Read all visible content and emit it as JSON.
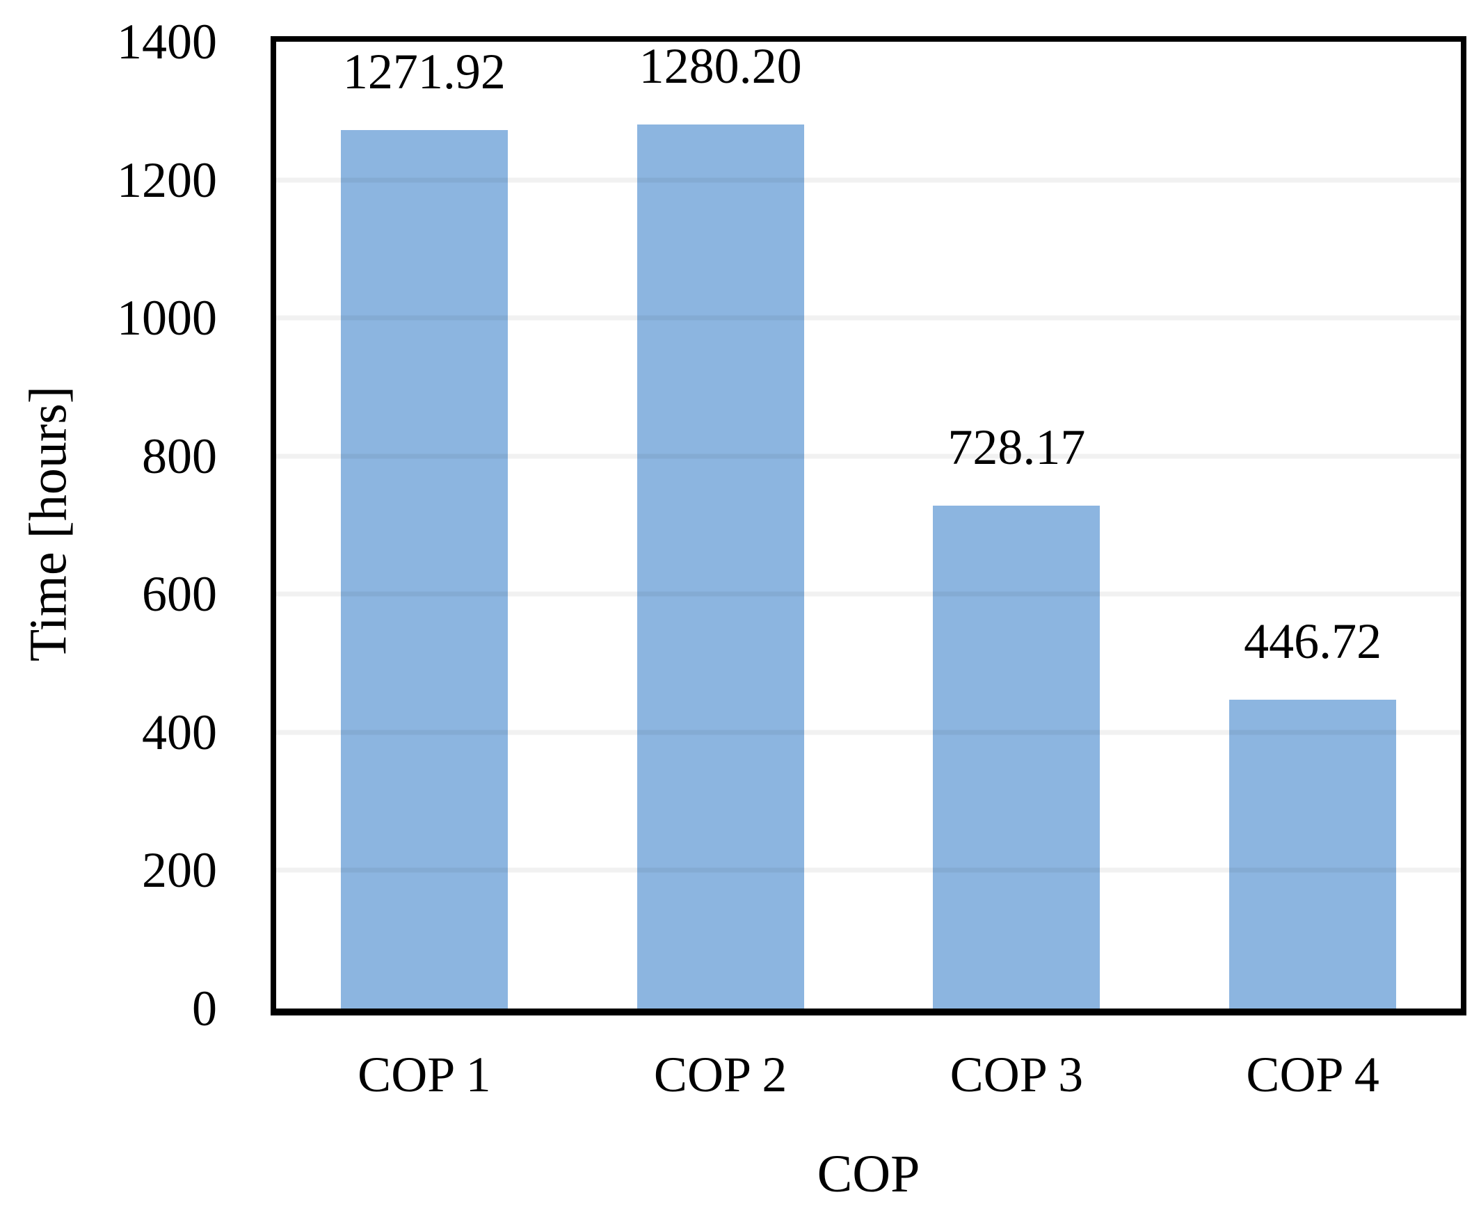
{
  "chart_data": {
    "type": "bar",
    "categories": [
      "COP 1",
      "COP 2",
      "COP 3",
      "COP 4"
    ],
    "values": [
      1271.92,
      1280.2,
      728.17,
      446.72
    ],
    "data_labels": [
      "1271.92",
      "1280.20",
      "728.17",
      "446.72"
    ],
    "title": "",
    "xlabel": "COP",
    "ylabel": "Time [hours]",
    "ylim": [
      0,
      1400
    ],
    "yticks": [
      0,
      200,
      400,
      600,
      800,
      1000,
      1200,
      1400
    ],
    "grid": "horizontal-light",
    "legend": "none",
    "colors": {
      "bar_fill": "#8CB5E0",
      "gridline": "rgba(0,0,0,0.055)",
      "axis_border": "#000000",
      "text": "#000000",
      "background": "#ffffff"
    }
  }
}
